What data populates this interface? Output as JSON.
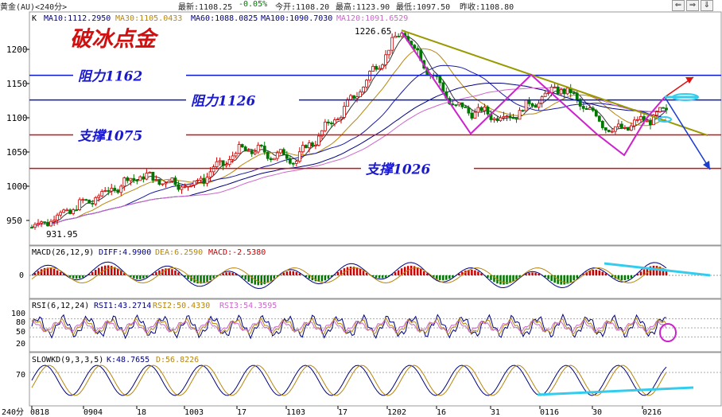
{
  "status_bar": {
    "instrument": "黄金(AU)<240分>",
    "latest": "最新:1108.25",
    "change": "-0.05%",
    "open": "今开:1108.20",
    "high": "最高:1123.90",
    "low": "最低:1097.50",
    "prev_close": "昨收:1108.80"
  },
  "window_buttons": [
    "⇐",
    "⇒",
    "⇓"
  ],
  "colors": {
    "ma10": "#333333",
    "ma30": "#b8860b",
    "ma60": "#1a1aa0",
    "ma100": "#000080",
    "ma120": "#cc66cc",
    "resistance": "#0a18c8",
    "support": "#d01010",
    "trend": "#999900",
    "pattern": "#cc22cc",
    "up_candle": "#cc0000",
    "down_candle": "#007700",
    "cyan_mark": "#33ccee"
  },
  "price_panel": {
    "indicator_prefix": "K",
    "ma_labels": [
      {
        "text": "MA10:1112.2950",
        "color": "#000080"
      },
      {
        "text": "MA30:1105.0433",
        "color": "#b8860b"
      },
      {
        "text": "MA60:1088.0825",
        "color": "#000080"
      },
      {
        "text": "MA100:1090.7030",
        "color": "#000080"
      },
      {
        "text": "MA120:1091.6529",
        "color": "#cc66cc"
      }
    ],
    "title": "破冰点金",
    "high_label": "1226.65",
    "low_label": "931.95",
    "y_ticks": [
      "1200",
      "1150",
      "1100",
      "1050",
      "1000",
      "950"
    ],
    "levels": [
      {
        "label": "阻力1162",
        "value": 1162,
        "type": "resistance"
      },
      {
        "label": "阻力1126",
        "value": 1126,
        "type": "resistance"
      },
      {
        "label": "支撑1075",
        "value": 1075,
        "type": "support"
      },
      {
        "label": "支撑1026",
        "value": 1026,
        "type": "support"
      }
    ]
  },
  "macd_panel": {
    "label": "MACD(26,12,9)",
    "diff": "DIFF:4.9900",
    "dea": "DEA:6.2590",
    "macd": "MACD:-2.5380",
    "y_tick": "0"
  },
  "rsi_panel": {
    "label": "RSI(6,12,24)",
    "rsi1": "RSI1:43.2714",
    "rsi2": "RSI2:50.4330",
    "rsi3": "RSI3:54.3595",
    "y_ticks": [
      "100",
      "80",
      "50",
      "20"
    ]
  },
  "kd_panel": {
    "label": "SLOWKD(9,3,3,5)",
    "k": "K:48.7655",
    "d": "D:56.8226",
    "y_tick": "70"
  },
  "x_axis": {
    "period_label": "240分",
    "ticks": [
      "0818",
      "0904",
      "18",
      "1003",
      "17",
      "1103",
      "17",
      "1202",
      "16",
      "31",
      "0116",
      "30",
      "0216"
    ]
  },
  "chart_data": {
    "type": "candlestick",
    "timeframe": "240分",
    "ylim": [
      920,
      1240
    ],
    "y_ticks": [
      1200,
      1150,
      1100,
      1050,
      1000,
      950
    ],
    "swing_points": [
      {
        "x": "0818",
        "price": 931.95
      },
      {
        "x": "1202",
        "price": 1226.65
      }
    ],
    "price_path_approx": [
      {
        "x": "0818",
        "price": 940
      },
      {
        "x": "0904",
        "price": 975
      },
      {
        "x": "18",
        "price": 1015
      },
      {
        "x": "1003",
        "price": 1000
      },
      {
        "x": "17",
        "price": 1055
      },
      {
        "x": "1103",
        "price": 1040
      },
      {
        "x": "17",
        "price": 1120
      },
      {
        "x": "1202",
        "price": 1226.65
      },
      {
        "x": "16",
        "price": 1115
      },
      {
        "x": "31",
        "price": 1100
      },
      {
        "x": "0116",
        "price": 1145
      },
      {
        "x": "30",
        "price": 1080
      },
      {
        "x": "0216",
        "price": 1108.25
      }
    ],
    "horizontal_levels": [
      1162,
      1126,
      1075,
      1026
    ]
  }
}
